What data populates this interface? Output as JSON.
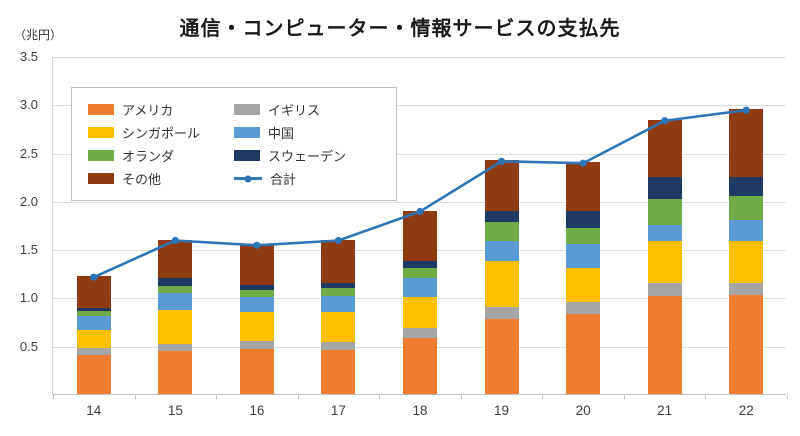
{
  "chart_data": {
    "type": "bar",
    "variant": "stacked-bar-with-total-line",
    "title": "通信・コンピューター・情報サービスの支払先",
    "unit": "（兆円）",
    "categories": [
      "14",
      "15",
      "16",
      "17",
      "18",
      "19",
      "20",
      "21",
      "22"
    ],
    "ylim": [
      0,
      3.5
    ],
    "yticks": [
      0.5,
      1.0,
      1.5,
      2.0,
      2.5,
      3.0,
      3.5
    ],
    "grid": "horizontal",
    "legend_position": "top-left-inside",
    "series": [
      {
        "name": "アメリカ",
        "color": "#ED7D31",
        "values": [
          0.4,
          0.45,
          0.47,
          0.46,
          0.58,
          0.78,
          0.83,
          1.02,
          1.03
        ]
      },
      {
        "name": "イギリス",
        "color": "#A5A5A5",
        "values": [
          0.08,
          0.07,
          0.08,
          0.08,
          0.1,
          0.12,
          0.12,
          0.13,
          0.12
        ]
      },
      {
        "name": "シンガポール",
        "color": "#FFC000",
        "values": [
          0.18,
          0.35,
          0.3,
          0.31,
          0.32,
          0.48,
          0.35,
          0.43,
          0.43
        ]
      },
      {
        "name": "中国",
        "color": "#5B9BD5",
        "values": [
          0.15,
          0.18,
          0.15,
          0.17,
          0.2,
          0.2,
          0.25,
          0.17,
          0.22
        ]
      },
      {
        "name": "オランダ",
        "color": "#70AD47",
        "values": [
          0.05,
          0.07,
          0.08,
          0.08,
          0.1,
          0.2,
          0.17,
          0.27,
          0.25
        ]
      },
      {
        "name": "スウェーデン",
        "color": "#1F3864",
        "values": [
          0.03,
          0.08,
          0.05,
          0.05,
          0.08,
          0.12,
          0.18,
          0.23,
          0.2
        ]
      },
      {
        "name": "その他",
        "color": "#8E3B12",
        "values": [
          0.33,
          0.4,
          0.42,
          0.45,
          0.52,
          0.52,
          0.5,
          0.59,
          0.7
        ]
      }
    ],
    "line": {
      "name": "合計",
      "color": "#2E75B6",
      "values": [
        1.22,
        1.6,
        1.55,
        1.6,
        1.9,
        2.42,
        2.4,
        2.84,
        2.95
      ]
    }
  }
}
